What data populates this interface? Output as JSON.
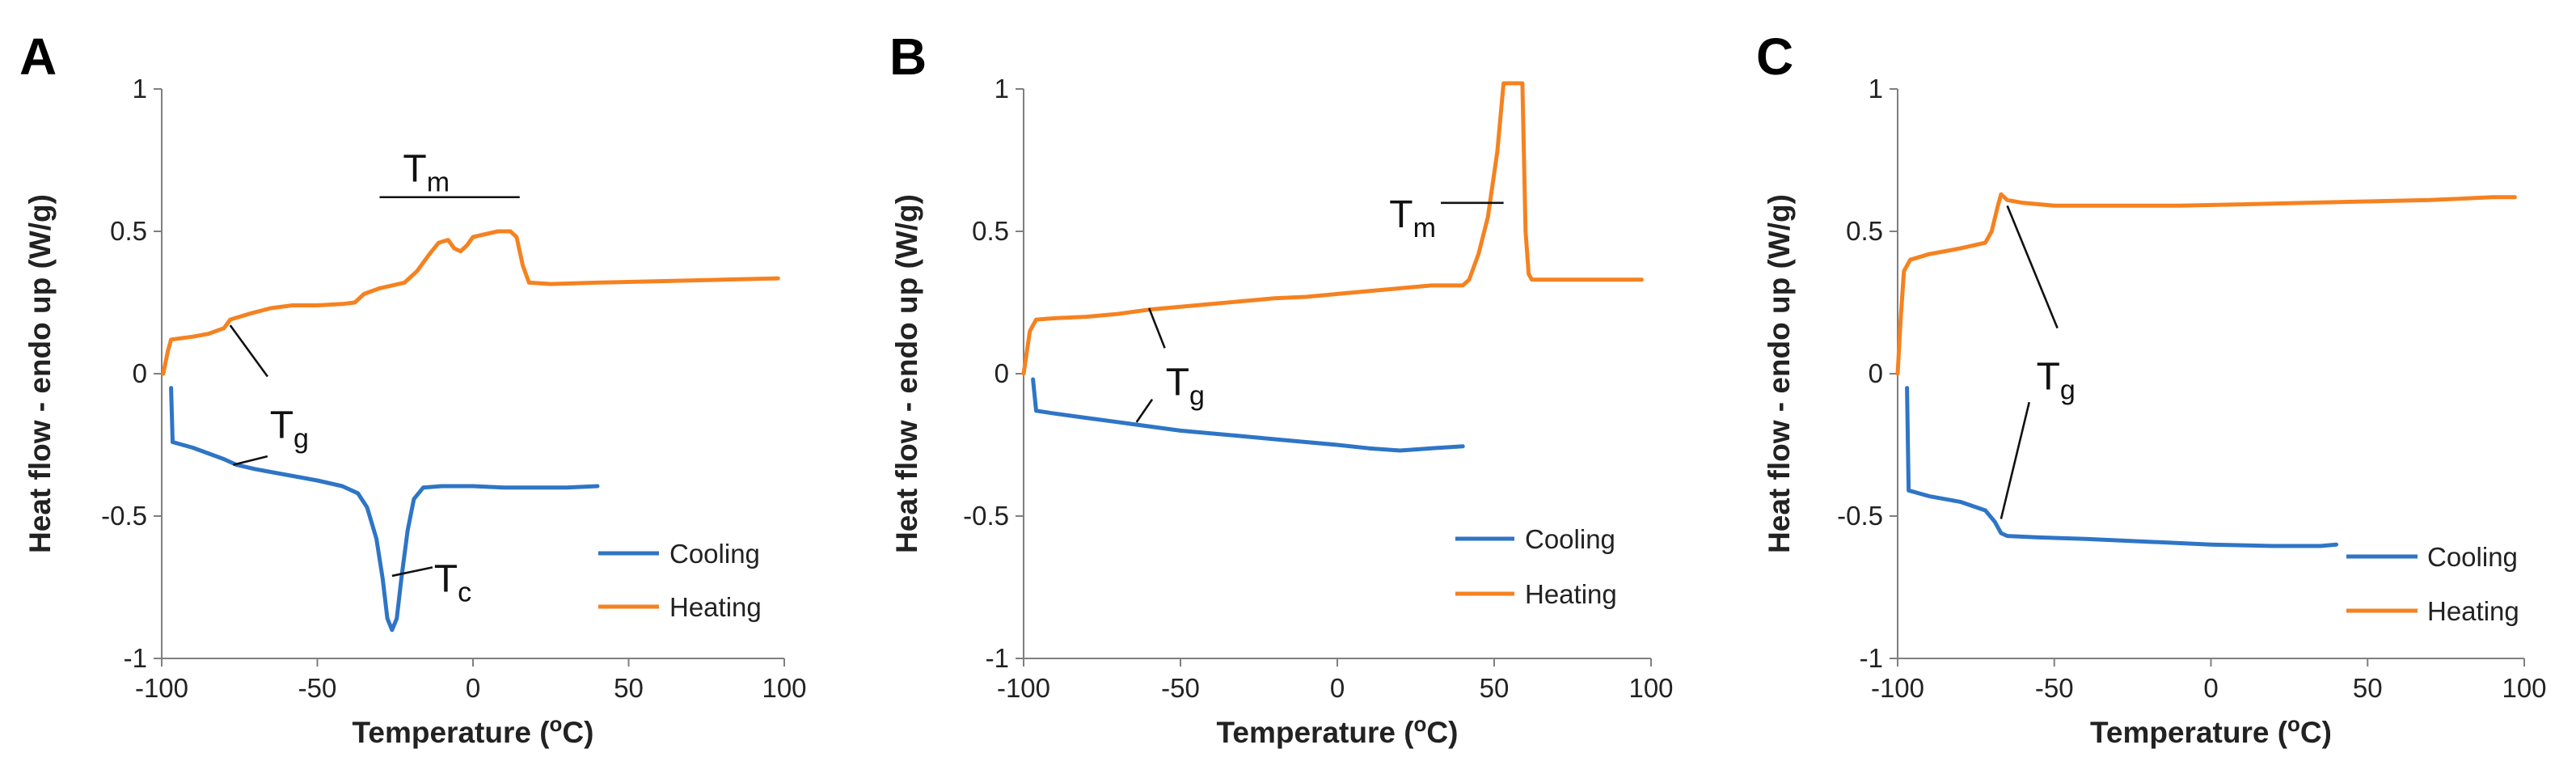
{
  "colors": {
    "cooling": "#2E75C6",
    "heating": "#F58220",
    "axis": "#7F7F7F",
    "text": "#222222"
  },
  "chart_data": [
    {
      "type": "line",
      "panel_label": "A",
      "xlabel": "Temperature (",
      "xlabel_sup": "o",
      "xlabel_tail": "C)",
      "ylabel": "Heat flow - endo up (W/g)",
      "xlim": [
        -100,
        100
      ],
      "ylim": [
        -1,
        1
      ],
      "x_ticks": [
        -100,
        -50,
        0,
        50,
        100
      ],
      "y_ticks": [
        -1,
        -0.5,
        0,
        0.5,
        1
      ],
      "x_tick_labels": [
        "-100",
        "-50",
        "0",
        "50",
        "100"
      ],
      "y_tick_labels": [
        "-1",
        "-0.5",
        "0",
        "0.5",
        "1"
      ],
      "legend": [
        "Cooling",
        "Heating"
      ],
      "legend_position": "bottom-right",
      "series": [
        {
          "name": "Cooling",
          "color_key": "cooling",
          "points": [
            [
              -97,
              -0.05
            ],
            [
              -96.5,
              -0.24
            ],
            [
              -90,
              -0.26
            ],
            [
              -80,
              -0.3
            ],
            [
              -76,
              -0.32
            ],
            [
              -70,
              -0.335
            ],
            [
              -60,
              -0.355
            ],
            [
              -50,
              -0.375
            ],
            [
              -42,
              -0.395
            ],
            [
              -37,
              -0.42
            ],
            [
              -34,
              -0.47
            ],
            [
              -31,
              -0.58
            ],
            [
              -29,
              -0.72
            ],
            [
              -27.5,
              -0.86
            ],
            [
              -26,
              -0.9
            ],
            [
              -24.5,
              -0.86
            ],
            [
              -23,
              -0.72
            ],
            [
              -21,
              -0.55
            ],
            [
              -19,
              -0.44
            ],
            [
              -16,
              -0.4
            ],
            [
              -10,
              -0.395
            ],
            [
              0,
              -0.395
            ],
            [
              10,
              -0.4
            ],
            [
              20,
              -0.4
            ],
            [
              30,
              -0.4
            ],
            [
              40,
              -0.395
            ]
          ]
        },
        {
          "name": "Heating",
          "color_key": "heating",
          "points": [
            [
              -99.5,
              0
            ],
            [
              -98,
              0.08
            ],
            [
              -97,
              0.12
            ],
            [
              -90,
              0.13
            ],
            [
              -85,
              0.14
            ],
            [
              -80,
              0.16
            ],
            [
              -78,
              0.19
            ],
            [
              -72,
              0.21
            ],
            [
              -65,
              0.23
            ],
            [
              -58,
              0.24
            ],
            [
              -50,
              0.24
            ],
            [
              -42,
              0.245
            ],
            [
              -38,
              0.25
            ],
            [
              -35,
              0.28
            ],
            [
              -30,
              0.3
            ],
            [
              -22,
              0.32
            ],
            [
              -18,
              0.36
            ],
            [
              -14,
              0.42
            ],
            [
              -11,
              0.46
            ],
            [
              -8,
              0.47
            ],
            [
              -6,
              0.44
            ],
            [
              -4,
              0.43
            ],
            [
              -2,
              0.45
            ],
            [
              0,
              0.48
            ],
            [
              4,
              0.49
            ],
            [
              8,
              0.5
            ],
            [
              12,
              0.5
            ],
            [
              14,
              0.48
            ],
            [
              16,
              0.38
            ],
            [
              18,
              0.32
            ],
            [
              25,
              0.315
            ],
            [
              40,
              0.32
            ],
            [
              60,
              0.325
            ],
            [
              80,
              0.33
            ],
            [
              98,
              0.335
            ]
          ]
        }
      ],
      "annotations": [
        {
          "label": "T",
          "sub": "m",
          "text_at": [
            -15,
            0.72
          ],
          "lines": [
            [
              [
                -30,
                0.62
              ],
              [
                15,
                0.62
              ]
            ]
          ]
        },
        {
          "label": "T",
          "sub": "g",
          "text_at": [
            -59,
            -0.18
          ],
          "lines": [
            [
              [
                -66,
                -0.01
              ],
              [
                -78,
                0.17
              ]
            ],
            [
              [
                -66,
                -0.29
              ],
              [
                -77,
                -0.32
              ]
            ]
          ]
        },
        {
          "label": "T",
          "sub": "c",
          "text_at": [
            -6.5,
            -0.72
          ],
          "lines": [
            [
              [
                -26,
                -0.71
              ],
              [
                -13,
                -0.68
              ]
            ]
          ]
        }
      ]
    },
    {
      "type": "line",
      "panel_label": "B",
      "xlabel": "Temperature (",
      "xlabel_sup": "o",
      "xlabel_tail": "C)",
      "ylabel": "Heat flow - endo up (W/g)",
      "xlim": [
        -100,
        100
      ],
      "ylim": [
        -1,
        1
      ],
      "x_ticks": [
        -100,
        -50,
        0,
        50,
        100
      ],
      "y_ticks": [
        -1,
        -0.5,
        0,
        0.5,
        1
      ],
      "x_tick_labels": [
        "-100",
        "-50",
        "0",
        "50",
        "100"
      ],
      "y_tick_labels": [
        "-1",
        "-0.5",
        "0",
        "0.5",
        "1"
      ],
      "legend": [
        "Cooling",
        "Heating"
      ],
      "legend_position": "bottom-right",
      "series": [
        {
          "name": "Cooling",
          "color_key": "cooling",
          "points": [
            [
              -97,
              -0.02
            ],
            [
              -96,
              -0.13
            ],
            [
              -90,
              -0.14
            ],
            [
              -80,
              -0.155
            ],
            [
              -70,
              -0.17
            ],
            [
              -60,
              -0.185
            ],
            [
              -50,
              -0.2
            ],
            [
              -40,
              -0.21
            ],
            [
              -30,
              -0.22
            ],
            [
              -20,
              -0.23
            ],
            [
              -10,
              -0.24
            ],
            [
              0,
              -0.25
            ],
            [
              10,
              -0.262
            ],
            [
              20,
              -0.27
            ],
            [
              30,
              -0.262
            ],
            [
              40,
              -0.255
            ]
          ]
        },
        {
          "name": "Heating",
          "color_key": "heating",
          "points": [
            [
              -100,
              0
            ],
            [
              -98,
              0.15
            ],
            [
              -96,
              0.19
            ],
            [
              -90,
              0.195
            ],
            [
              -80,
              0.2
            ],
            [
              -70,
              0.21
            ],
            [
              -60,
              0.225
            ],
            [
              -50,
              0.235
            ],
            [
              -40,
              0.245
            ],
            [
              -30,
              0.255
            ],
            [
              -20,
              0.265
            ],
            [
              -10,
              0.27
            ],
            [
              0,
              0.28
            ],
            [
              10,
              0.29
            ],
            [
              20,
              0.3
            ],
            [
              30,
              0.31
            ],
            [
              40,
              0.31
            ],
            [
              42,
              0.33
            ],
            [
              45,
              0.42
            ],
            [
              48,
              0.55
            ],
            [
              51,
              0.78
            ],
            [
              53,
              1.02
            ],
            [
              59,
              1.02
            ],
            [
              60,
              0.5
            ],
            [
              61,
              0.35
            ],
            [
              62,
              0.33
            ],
            [
              70,
              0.33
            ],
            [
              80,
              0.33
            ],
            [
              90,
              0.33
            ],
            [
              97,
              0.33
            ]
          ]
        }
      ],
      "annotations": [
        {
          "label": "T",
          "sub": "m",
          "text_at": [
            24,
            0.56
          ],
          "lines": [
            [
              [
                33,
                0.6
              ],
              [
                53,
                0.6
              ]
            ]
          ]
        },
        {
          "label": "T",
          "sub": "g",
          "text_at": [
            -48.5,
            -0.03
          ],
          "lines": [
            [
              [
                -60,
                0.23
              ],
              [
                -55,
                0.09
              ]
            ],
            [
              [
                -64,
                -0.17
              ],
              [
                -59,
                -0.09
              ]
            ]
          ]
        }
      ]
    },
    {
      "type": "line",
      "panel_label": "C",
      "xlabel": "Temperature (",
      "xlabel_sup": "o",
      "xlabel_tail": "C)",
      "ylabel": "Heat flow - endo up (W/g)",
      "xlim": [
        -100,
        100
      ],
      "ylim": [
        -1,
        1
      ],
      "x_ticks": [
        -100,
        -50,
        0,
        50,
        100
      ],
      "y_ticks": [
        -1,
        -0.5,
        0,
        0.5,
        1
      ],
      "x_tick_labels": [
        "-100",
        "-50",
        "0",
        "50",
        "100"
      ],
      "y_tick_labels": [
        "-1",
        "-0.5",
        "0",
        "0.5",
        "1"
      ],
      "legend": [
        "Cooling",
        "Heating"
      ],
      "legend_position": "bottom-right",
      "series": [
        {
          "name": "Cooling",
          "color_key": "cooling",
          "points": [
            [
              -97,
              -0.05
            ],
            [
              -96.5,
              -0.41
            ],
            [
              -90,
              -0.43
            ],
            [
              -80,
              -0.45
            ],
            [
              -72,
              -0.48
            ],
            [
              -69,
              -0.52
            ],
            [
              -67,
              -0.56
            ],
            [
              -65,
              -0.57
            ],
            [
              -55,
              -0.575
            ],
            [
              -40,
              -0.58
            ],
            [
              -20,
              -0.59
            ],
            [
              0,
              -0.6
            ],
            [
              20,
              -0.605
            ],
            [
              35,
              -0.605
            ],
            [
              40,
              -0.6
            ]
          ]
        },
        {
          "name": "Heating",
          "color_key": "heating",
          "points": [
            [
              -100,
              0
            ],
            [
              -99,
              0.2
            ],
            [
              -98,
              0.36
            ],
            [
              -96,
              0.4
            ],
            [
              -90,
              0.42
            ],
            [
              -80,
              0.44
            ],
            [
              -72,
              0.46
            ],
            [
              -70,
              0.5
            ],
            [
              -68,
              0.59
            ],
            [
              -67,
              0.63
            ],
            [
              -65,
              0.61
            ],
            [
              -60,
              0.6
            ],
            [
              -50,
              0.59
            ],
            [
              -30,
              0.59
            ],
            [
              -10,
              0.59
            ],
            [
              10,
              0.595
            ],
            [
              30,
              0.6
            ],
            [
              50,
              0.605
            ],
            [
              70,
              0.61
            ],
            [
              90,
              0.62
            ],
            [
              97,
              0.62
            ]
          ]
        }
      ],
      "annotations": [
        {
          "label": "T",
          "sub": "g",
          "text_at": [
            -49.5,
            -0.01
          ],
          "lines": [
            [
              [
                -49,
                0.16
              ],
              [
                -65,
                0.59
              ]
            ],
            [
              [
                -58,
                -0.1
              ],
              [
                -67,
                -0.51
              ]
            ]
          ]
        }
      ]
    }
  ]
}
